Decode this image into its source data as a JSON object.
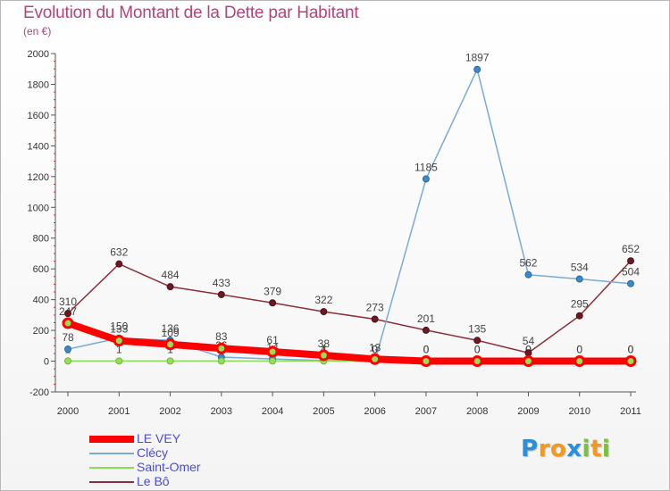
{
  "chart_data": {
    "type": "line",
    "title": "Evolution du Montant de la Dette par Habitant",
    "subtitle": "(en €)",
    "xlabel": "",
    "ylabel": "",
    "x": [
      "2000",
      "2001",
      "2002",
      "2003",
      "2004",
      "2005",
      "2006",
      "2007",
      "2008",
      "2009",
      "2010",
      "2011"
    ],
    "ylim": [
      -200,
      2000
    ],
    "yticks": [
      "-200",
      "0",
      "200",
      "400",
      "600",
      "800",
      "1000",
      "1200",
      "1400",
      "1600",
      "1800",
      "2000"
    ],
    "grid": false,
    "legend_position": "bottom-left",
    "series": [
      {
        "name": "LE VEY",
        "color": "#ff0000",
        "values": [
          247,
          133,
          109,
          83,
          61,
          38,
          13,
          0,
          0,
          0,
          0,
          0
        ],
        "labels": [
          "247",
          "133",
          "109",
          "83",
          "61",
          "38",
          "13",
          "0",
          "0",
          "0",
          "0",
          "0"
        ]
      },
      {
        "name": "Clécy",
        "color": "#7aaad6",
        "values": [
          78,
          150,
          136,
          26,
          14,
          4,
          0,
          1185,
          1897,
          562,
          534,
          504
        ],
        "labels": [
          "78",
          "150",
          "136",
          "26",
          "14",
          "4",
          "0",
          "1185",
          "1897",
          "562",
          "534",
          "504"
        ]
      },
      {
        "name": "Saint-Omer",
        "color": "#88dd55",
        "values": [
          1,
          1,
          1,
          1,
          1,
          1,
          0,
          0,
          0,
          0,
          0,
          0
        ],
        "labels": [
          "1",
          "1",
          "1",
          "1",
          "1",
          "1",
          "0",
          "0",
          "0",
          "0",
          "0",
          "0"
        ]
      },
      {
        "name": "Le Bô",
        "color": "#8b2f3a",
        "values": [
          310,
          632,
          484,
          433,
          379,
          322,
          273,
          201,
          135,
          54,
          295,
          652
        ],
        "labels": [
          "310",
          "632",
          "484",
          "433",
          "379",
          "322",
          "273",
          "201",
          "135",
          "54",
          "295",
          "652"
        ]
      }
    ]
  },
  "logo": {
    "letters": [
      "P",
      "r",
      "o",
      "x",
      "i",
      "t",
      "i"
    ],
    "colors": [
      "#2a8fd8",
      "#f39a1c",
      "#f39a1c",
      "#2a8fd8",
      "#7bc043",
      "#f39a1c",
      "#7bc043"
    ]
  }
}
